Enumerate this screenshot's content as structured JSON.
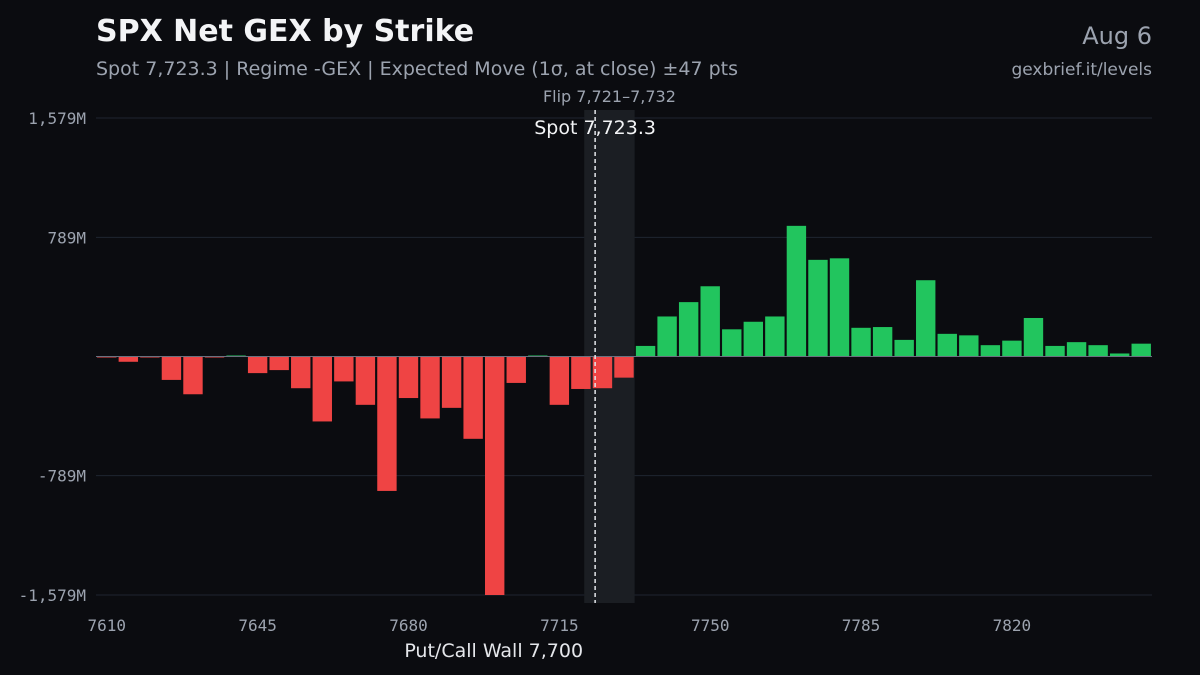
{
  "header": {
    "title": "SPX Net GEX by Strike",
    "subtitle": "Spot 7,723.3 | Regime -GEX | Expected Move (1σ, at close) ±47 pts",
    "date": "Aug 6",
    "site": "gexbrief.it/levels"
  },
  "colors": {
    "positive": "#22c55e",
    "negative": "#ef4444",
    "background": "#0b0c10",
    "grid": "#1f2530",
    "flip_band": "#1b1e23"
  },
  "chart_data": {
    "type": "bar",
    "title": "SPX Net GEX by Strike",
    "xlabel": "",
    "ylabel": "",
    "unit": "M",
    "x": [
      7610,
      7615,
      7620,
      7625,
      7630,
      7635,
      7640,
      7645,
      7650,
      7655,
      7660,
      7665,
      7670,
      7675,
      7680,
      7685,
      7690,
      7695,
      7700,
      7705,
      7710,
      7715,
      7720,
      7725,
      7730,
      7735,
      7740,
      7745,
      7750,
      7755,
      7760,
      7765,
      7770,
      7775,
      7780,
      7785,
      7790,
      7795,
      7800,
      7805,
      7810,
      7815,
      7820,
      7825,
      7830,
      7835,
      7840,
      7845,
      7850
    ],
    "values": [
      -4,
      -35,
      -4,
      -155,
      -250,
      -4,
      6,
      -110,
      -90,
      -210,
      -430,
      -165,
      -320,
      -890,
      -275,
      -410,
      -340,
      -545,
      -1579,
      -175,
      6,
      -320,
      -215,
      -210,
      -140,
      70,
      265,
      360,
      465,
      180,
      230,
      265,
      865,
      640,
      650,
      190,
      195,
      110,
      505,
      150,
      140,
      75,
      105,
      255,
      70,
      95,
      75,
      20,
      85
    ],
    "xticks": [
      "7610",
      "7645",
      "7680",
      "7715",
      "7750",
      "7785",
      "7820"
    ],
    "xtick_values": [
      7610,
      7645,
      7680,
      7715,
      7750,
      7785,
      7820
    ],
    "yticks": [
      "1,579M",
      "789M",
      "-789M",
      "-1,579M"
    ],
    "ytick_values": [
      1579,
      789,
      -789,
      -1579
    ],
    "ylim": [
      -1579,
      1579
    ],
    "xlim": [
      7607.5,
      7852.5
    ],
    "grid": true,
    "spot": {
      "value": 7723.3,
      "label": "Spot 7,723.3"
    },
    "flip": {
      "range": [
        7721,
        7732
      ],
      "label": "Flip 7,721–7,732"
    },
    "wall": {
      "value": 7700,
      "label": "Put/Call Wall 7,700"
    }
  }
}
